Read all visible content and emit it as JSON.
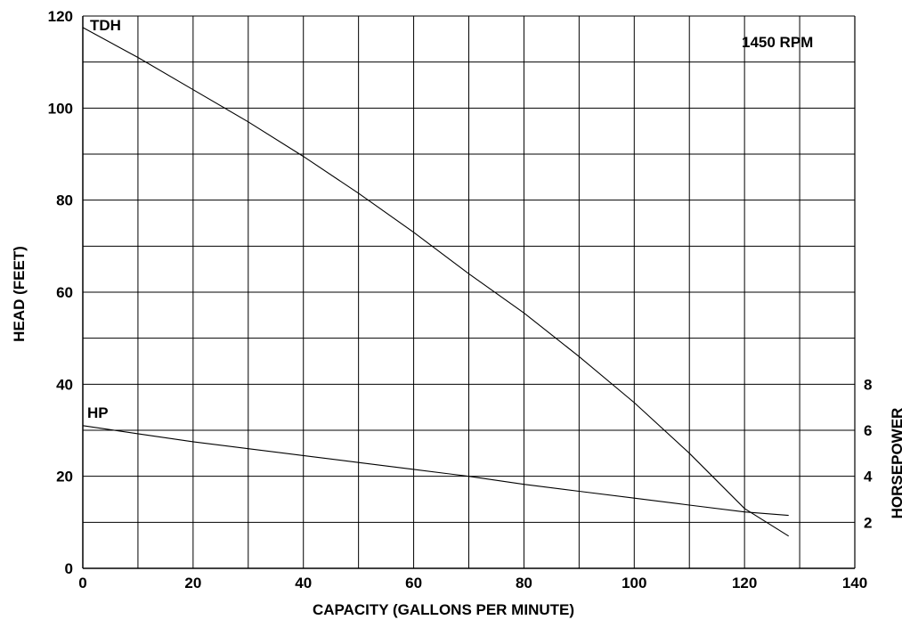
{
  "chart_data": {
    "type": "line",
    "annotation": "1450 RPM",
    "xlabel": "CAPACITY (GALLONS PER MINUTE)",
    "ylabel": "HEAD (FEET)",
    "y2label": "HORSEPOWER",
    "xlim": [
      0,
      140
    ],
    "ylim": [
      0,
      120
    ],
    "y2lim": [
      0,
      24
    ],
    "grid": true,
    "x_ticks": [
      "0",
      "20",
      "40",
      "60",
      "80",
      "100",
      "120",
      "140"
    ],
    "y_ticks": [
      "0",
      "20",
      "40",
      "60",
      "80",
      "100",
      "120"
    ],
    "y2_ticks": [
      "2",
      "4",
      "6",
      "8"
    ],
    "series": [
      {
        "name": "TDH",
        "axis": "left",
        "x": [
          0,
          10,
          20,
          30,
          40,
          50,
          60,
          70,
          80,
          90,
          100,
          110,
          120,
          128
        ],
        "y": [
          117.5,
          111,
          104,
          97,
          89.5,
          81.5,
          73,
          64,
          55.5,
          46,
          36,
          25,
          13,
          7
        ]
      },
      {
        "name": "HP",
        "axis": "right",
        "x": [
          0,
          10,
          20,
          30,
          40,
          50,
          60,
          70,
          80,
          90,
          100,
          110,
          120,
          128
        ],
        "y": [
          6.2,
          5.85,
          5.5,
          5.2,
          4.9,
          4.6,
          4.3,
          4.0,
          3.65,
          3.35,
          3.05,
          2.75,
          2.45,
          2.3
        ]
      }
    ]
  }
}
